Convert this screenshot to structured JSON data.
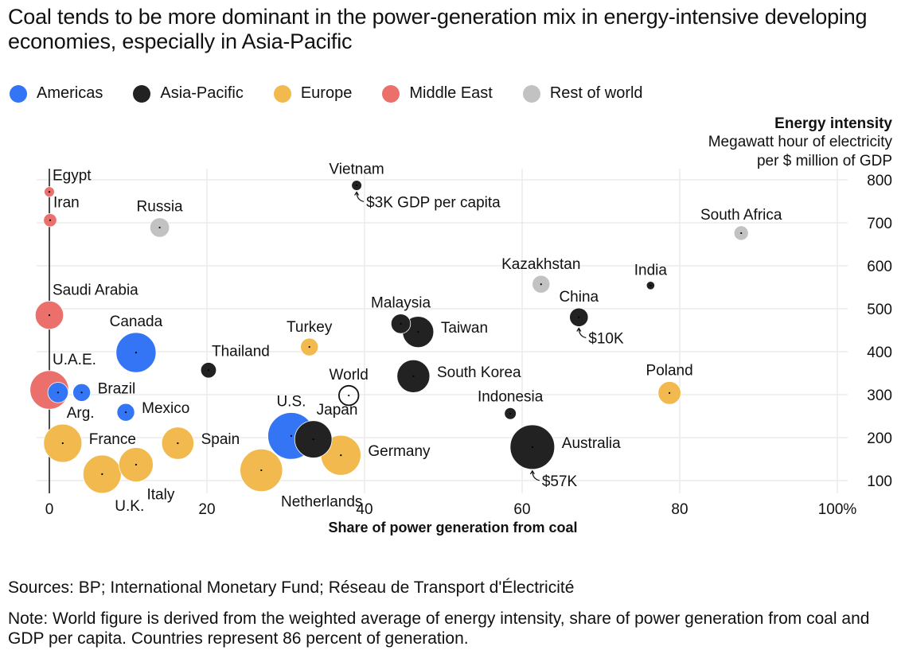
{
  "title": "Coal tends to be more dominant in the power-generation mix in energy-intensive developing economies, especially in Asia-Pacific",
  "legend": [
    {
      "label": "Americas",
      "color": "#3375f4"
    },
    {
      "label": "Asia-Pacific",
      "color": "#222222"
    },
    {
      "label": "Europe",
      "color": "#f2b94f"
    },
    {
      "label": "Middle East",
      "color": "#eb6f6a"
    },
    {
      "label": "Rest of world",
      "color": "#c2c2c2"
    }
  ],
  "footer": {
    "sources": "Sources: BP; International Monetary Fund; Réseau de Transport d'Électricité",
    "note": "Note: World figure is derived from the weighted average of energy intensity, share of power generation from coal and GDP per capita. Countries represent 86 percent of generation."
  },
  "chart_data": {
    "type": "scatter",
    "subtype": "bubble",
    "title": "Coal tends to be more dominant in the power-generation mix in energy-intensive developing economies, especially in Asia-Pacific",
    "xlabel": "Share of power generation from coal",
    "ylabel_title": "Energy intensity",
    "ylabel_lines": [
      "Megawatt hour of electricity",
      "per $ million of GDP"
    ],
    "xlim": [
      0,
      100
    ],
    "ylim": [
      100,
      800
    ],
    "x_ticks": [
      0,
      20,
      40,
      60,
      80,
      100
    ],
    "x_tick_labels": [
      "0",
      "20",
      "40",
      "60",
      "80",
      "100%"
    ],
    "y_ticks": [
      800,
      700,
      600,
      500,
      400,
      300,
      200,
      100
    ],
    "y_tick_labels": [
      "800",
      "700",
      "600",
      "500",
      "400",
      "300",
      "200",
      "100"
    ],
    "grid": true,
    "legend_position": "top-left",
    "size_encoding": "GDP per capita",
    "annotations": [
      {
        "point": "Vietnam",
        "text": "$3K GDP per capita"
      },
      {
        "point": "China",
        "text": "$10K"
      },
      {
        "point": "Australia",
        "text": "$57K"
      }
    ],
    "points": [
      {
        "name": "Egypt",
        "region": "Middle East",
        "x": 0,
        "y": 772,
        "gdp_k": 3,
        "label_pos": "ne"
      },
      {
        "name": "Iran",
        "region": "Middle East",
        "x": 0.1,
        "y": 706,
        "gdp_k": 5,
        "label_pos": "ne"
      },
      {
        "name": "Russia",
        "region": "Rest of world",
        "x": 14,
        "y": 689,
        "gdp_k": 11,
        "label_pos": "n"
      },
      {
        "name": "Saudi Arabia",
        "region": "Middle East",
        "x": 0,
        "y": 485,
        "gdp_k": 23,
        "label_pos": "ne"
      },
      {
        "name": "Canada",
        "region": "Americas",
        "x": 11,
        "y": 398,
        "gdp_k": 46,
        "label_pos": "n"
      },
      {
        "name": "Thailand",
        "region": "Asia-Pacific",
        "x": 20.2,
        "y": 357,
        "gdp_k": 7,
        "label_pos": "ne"
      },
      {
        "name": "U.A.E.",
        "region": "Middle East",
        "x": 0,
        "y": 311,
        "gdp_k": 43,
        "label_pos": "ne"
      },
      {
        "name": "Arg.",
        "region": "Americas",
        "x": 1.1,
        "y": 305,
        "gdp_k": 12,
        "label_pos": "se"
      },
      {
        "name": "Brazil",
        "region": "Americas",
        "x": 4.1,
        "y": 305,
        "gdp_k": 9,
        "label_pos": "e"
      },
      {
        "name": "Mexico",
        "region": "Americas",
        "x": 9.7,
        "y": 259,
        "gdp_k": 9,
        "label_pos": "e"
      },
      {
        "name": "France",
        "region": "Europe",
        "x": 1.7,
        "y": 187,
        "gdp_k": 42,
        "label_pos": "e"
      },
      {
        "name": "Spain",
        "region": "Europe",
        "x": 16.3,
        "y": 187,
        "gdp_k": 30,
        "label_pos": "e"
      },
      {
        "name": "U.K.",
        "region": "Europe",
        "x": 6.7,
        "y": 115,
        "gdp_k": 42,
        "label_pos": "s"
      },
      {
        "name": "Italy",
        "region": "Europe",
        "x": 11,
        "y": 137,
        "gdp_k": 34,
        "label_pos": "s"
      },
      {
        "name": "Turkey",
        "region": "Europe",
        "x": 33,
        "y": 411,
        "gdp_k": 9,
        "label_pos": "n"
      },
      {
        "name": "World",
        "region": "World",
        "x": 38,
        "y": 298,
        "gdp_k": 11,
        "label_pos": "n"
      },
      {
        "name": "U.S.",
        "region": "Americas",
        "x": 30.7,
        "y": 204,
        "gdp_k": 63,
        "label_pos": "n"
      },
      {
        "name": "Japan",
        "region": "Asia-Pacific",
        "x": 33.5,
        "y": 196,
        "gdp_k": 40,
        "label_pos": "ne"
      },
      {
        "name": "Germany",
        "region": "Europe",
        "x": 37,
        "y": 159,
        "gdp_k": 46,
        "label_pos": "e"
      },
      {
        "name": "Netherlands",
        "region": "Europe",
        "x": 26.9,
        "y": 124,
        "gdp_k": 52,
        "label_pos": "se"
      },
      {
        "name": "Vietnam",
        "region": "Asia-Pacific",
        "x": 39,
        "y": 787,
        "gdp_k": 3,
        "label_pos": "n"
      },
      {
        "name": "Malaysia",
        "region": "Asia-Pacific",
        "x": 44.6,
        "y": 465,
        "gdp_k": 11,
        "label_pos": "n"
      },
      {
        "name": "Taiwan",
        "region": "Asia-Pacific",
        "x": 46.8,
        "y": 446,
        "gdp_k": 28,
        "label_pos": "e"
      },
      {
        "name": "South Korea",
        "region": "Asia-Pacific",
        "x": 46.2,
        "y": 343,
        "gdp_k": 31,
        "label_pos": "e"
      },
      {
        "name": "Kazakhstan",
        "region": "Rest of world",
        "x": 62.4,
        "y": 557,
        "gdp_k": 9,
        "label_pos": "n"
      },
      {
        "name": "India",
        "region": "Asia-Pacific",
        "x": 76.3,
        "y": 554,
        "gdp_k": 2,
        "label_pos": "n"
      },
      {
        "name": "China",
        "region": "Asia-Pacific",
        "x": 67.2,
        "y": 480,
        "gdp_k": 10,
        "label_pos": "n"
      },
      {
        "name": "Indonesia",
        "region": "Asia-Pacific",
        "x": 58.5,
        "y": 256,
        "gdp_k": 4,
        "label_pos": "n"
      },
      {
        "name": "Australia",
        "region": "Asia-Pacific",
        "x": 61.3,
        "y": 178,
        "gdp_k": 57,
        "label_pos": "e"
      },
      {
        "name": "Poland",
        "region": "Europe",
        "x": 78.7,
        "y": 304,
        "gdp_k": 15,
        "label_pos": "n"
      },
      {
        "name": "South Africa",
        "region": "Rest of world",
        "x": 87.8,
        "y": 676,
        "gdp_k": 6,
        "label_pos": "n"
      }
    ]
  }
}
